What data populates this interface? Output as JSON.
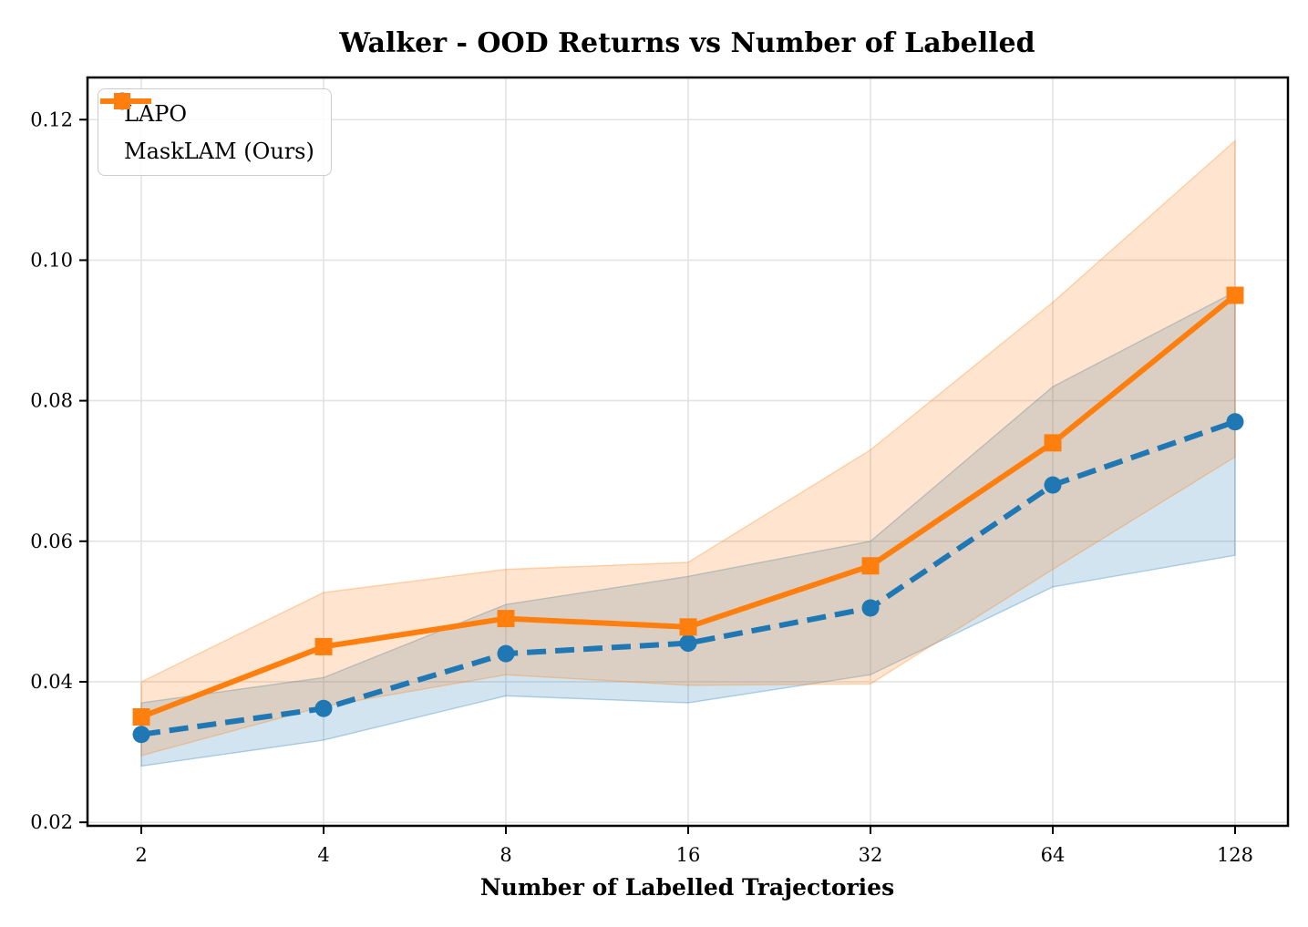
{
  "chart_data": {
    "type": "line",
    "title": "Walker - OOD Returns vs Number of Labelled",
    "xlabel": "Number of Labelled Trajectories",
    "ylabel": "",
    "x_scale": "log2",
    "x": [
      2,
      4,
      8,
      16,
      32,
      64,
      128
    ],
    "xtick_labels": [
      "2",
      "4",
      "8",
      "16",
      "32",
      "64",
      "128"
    ],
    "yticks": [
      0.02,
      0.04,
      0.06,
      0.08,
      0.1,
      0.12
    ],
    "ytick_labels": [
      "0.02",
      "0.04",
      "0.06",
      "0.08",
      "0.10",
      "0.12"
    ],
    "xlim": [
      1.63,
      156.5
    ],
    "ylim": [
      0.0195,
      0.126
    ],
    "grid": true,
    "legend_position": "upper left",
    "series": [
      {
        "name": "LAPO",
        "color": "#1f77b4",
        "line_style": "dashed",
        "marker": "circle",
        "values": [
          0.0325,
          0.0362,
          0.044,
          0.0455,
          0.0505,
          0.068,
          0.077
        ],
        "band_lower": [
          0.028,
          0.0317,
          0.038,
          0.037,
          0.041,
          0.0535,
          0.058
        ],
        "band_upper": [
          0.037,
          0.0406,
          0.051,
          0.055,
          0.06,
          0.082,
          0.0955
        ]
      },
      {
        "name": "MaskLAM (Ours)",
        "color": "#ff7f0e",
        "line_style": "solid",
        "marker": "square",
        "values": [
          0.035,
          0.045,
          0.049,
          0.0478,
          0.0565,
          0.074,
          0.095
        ],
        "band_lower": [
          0.0295,
          0.0365,
          0.041,
          0.0395,
          0.0397,
          0.056,
          0.072
        ],
        "band_upper": [
          0.04,
          0.0527,
          0.056,
          0.057,
          0.073,
          0.094,
          0.117
        ]
      }
    ],
    "band_alpha": 0.2
  }
}
